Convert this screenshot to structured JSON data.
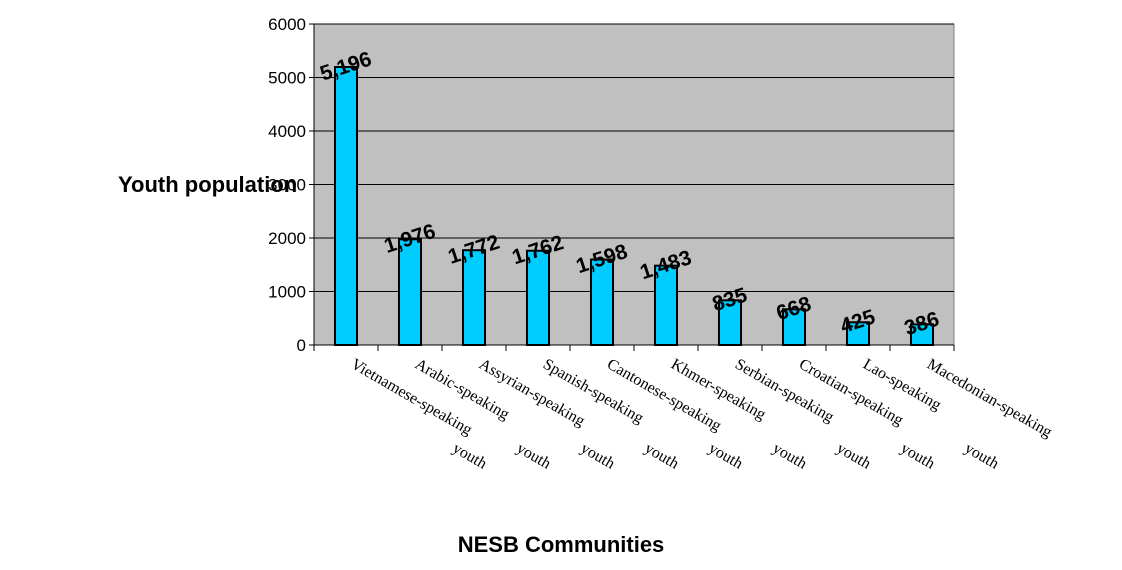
{
  "chart_data": {
    "type": "bar",
    "title": "",
    "xlabel": "NESB Communities",
    "ylabel": "Youth population",
    "categories": [
      "Vietnamese-speaking youth",
      "Arabic-speaking youth",
      "Assyrian-speaking youth",
      "Spanish-speaking youth",
      "Cantonese-speaking youth",
      "Khmer-speaking youth",
      "Serbian-speaking youth",
      "Croatian-speaking youth",
      "Lao-speaking youth",
      "Macedonian-speaking"
    ],
    "values": [
      5196,
      1976,
      1772,
      1762,
      1598,
      1483,
      835,
      668,
      425,
      386
    ],
    "data_labels": [
      "5,196",
      "1,976",
      "1,772",
      "1,762",
      "1,598",
      "1,483",
      "835",
      "668",
      "425",
      "386"
    ],
    "ylim": [
      0,
      6000
    ],
    "yticks": [
      0,
      1000,
      2000,
      3000,
      4000,
      5000,
      6000
    ],
    "grid": true,
    "colors": {
      "bar_fill": "#00ccff",
      "bar_stroke": "#000000",
      "plot_background": "#c0c0c0",
      "gridline": "#000000"
    }
  }
}
